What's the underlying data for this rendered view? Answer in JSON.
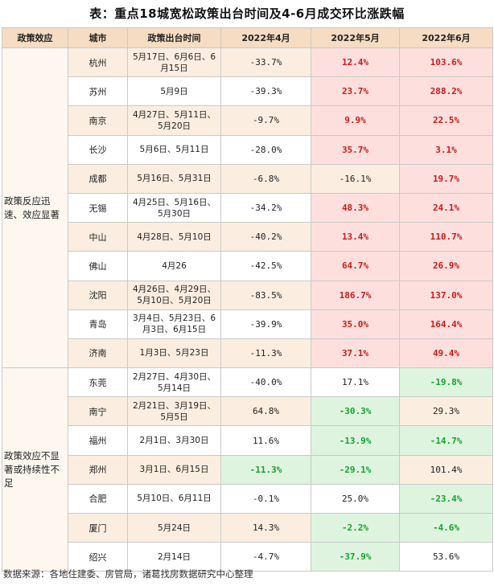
{
  "title": "表：重点18城宽松政策出台时间及4-6月成交环比涨跌幅",
  "headers": [
    "政策效应",
    "城市",
    "政策出台时间",
    "2022年4月",
    "2022年5月",
    "2022年6月"
  ],
  "groups": [
    {
      "label": "政策反应迅速、效应显著",
      "rows": [
        {
          "city": "杭州",
          "dates": "5月17日、6月6日、6月15日",
          "apr": "-33.7%",
          "may": "12.4%",
          "jun": "103.6%",
          "apr_s": "",
          "may_s": "red",
          "jun_s": "red"
        },
        {
          "city": "苏州",
          "dates": "5月9日",
          "apr": "-39.3%",
          "may": "23.7%",
          "jun": "288.2%",
          "apr_s": "",
          "may_s": "red",
          "jun_s": "red"
        },
        {
          "city": "南京",
          "dates": "4月27日、5月11日、5月20日",
          "apr": "-9.7%",
          "may": "9.9%",
          "jun": "22.5%",
          "apr_s": "",
          "may_s": "red",
          "jun_s": "red"
        },
        {
          "city": "长沙",
          "dates": "5月6日、5月11日",
          "apr": "-28.0%",
          "may": "35.7%",
          "jun": "3.1%",
          "apr_s": "",
          "may_s": "red",
          "jun_s": "red"
        },
        {
          "city": "成都",
          "dates": "5月16日、5月31日",
          "apr": "-6.8%",
          "may": "-16.1%",
          "jun": "19.7%",
          "apr_s": "",
          "may_s": "",
          "jun_s": "red"
        },
        {
          "city": "无锡",
          "dates": "4月25日、5月16日、5月30日",
          "apr": "-34.2%",
          "may": "48.3%",
          "jun": "24.1%",
          "apr_s": "",
          "may_s": "red",
          "jun_s": "red"
        },
        {
          "city": "中山",
          "dates": "4月28日、5月10日",
          "apr": "-40.2%",
          "may": "13.4%",
          "jun": "110.7%",
          "apr_s": "",
          "may_s": "red",
          "jun_s": "red"
        },
        {
          "city": "佛山",
          "dates": "4月26",
          "apr": "-42.5%",
          "may": "64.7%",
          "jun": "26.9%",
          "apr_s": "",
          "may_s": "red",
          "jun_s": "red"
        },
        {
          "city": "沈阳",
          "dates": "4月26日、4月29日、5月10日、5月20日",
          "apr": "-83.5%",
          "may": "186.7%",
          "jun": "137.0%",
          "apr_s": "",
          "may_s": "red",
          "jun_s": "red"
        },
        {
          "city": "青岛",
          "dates": "3月4日、5月23日、6月3日、6月15日",
          "apr": "-39.9%",
          "may": "35.0%",
          "jun": "164.4%",
          "apr_s": "",
          "may_s": "red",
          "jun_s": "red"
        },
        {
          "city": "济南",
          "dates": "1月3日、5月23日",
          "apr": "-11.3%",
          "may": "37.1%",
          "jun": "49.4%",
          "apr_s": "",
          "may_s": "red",
          "jun_s": "red"
        }
      ]
    },
    {
      "label": "政策效应不显著或持续性不足",
      "rows": [
        {
          "city": "东莞",
          "dates": "2月27日、4月30日、5月14日",
          "apr": "-40.0%",
          "may": "17.1%",
          "jun": "-19.8%",
          "apr_s": "",
          "may_s": "",
          "jun_s": "green"
        },
        {
          "city": "南宁",
          "dates": "2月21日、3月19日、5月5日",
          "apr": "64.8%",
          "may": "-30.3%",
          "jun": "29.3%",
          "apr_s": "",
          "may_s": "green",
          "jun_s": ""
        },
        {
          "city": "福州",
          "dates": "2月1日、3月30日",
          "apr": "11.6%",
          "may": "-13.9%",
          "jun": "-14.7%",
          "apr_s": "",
          "may_s": "green",
          "jun_s": "green"
        },
        {
          "city": "郑州",
          "dates": "3月1日、6月15日",
          "apr": "-11.3%",
          "may": "-29.1%",
          "jun": "101.4%",
          "apr_s": "green",
          "may_s": "green",
          "jun_s": ""
        },
        {
          "city": "合肥",
          "dates": "5月10日、6月11日",
          "apr": "-0.1%",
          "may": "25.0%",
          "jun": "-23.4%",
          "apr_s": "",
          "may_s": "",
          "jun_s": "green"
        },
        {
          "city": "厦门",
          "dates": "5月24日",
          "apr": "14.3%",
          "may": "-2.2%",
          "jun": "-4.6%",
          "apr_s": "",
          "may_s": "green",
          "jun_s": "green"
        },
        {
          "city": "绍兴",
          "dates": "2月14日",
          "apr": "-4.7%",
          "may": "-37.9%",
          "jun": "53.6%",
          "apr_s": "",
          "may_s": "green",
          "jun_s": ""
        }
      ]
    }
  ],
  "source": "数据来源：各地住建委、房管局，诸葛找房数据研究中心整理",
  "colors": {
    "up": "#d01818",
    "down": "#16a22b",
    "header_bg": "#f5dcc2"
  }
}
